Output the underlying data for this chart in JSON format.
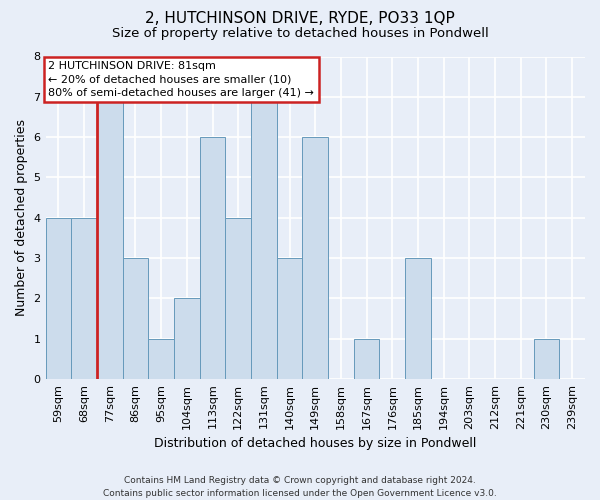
{
  "title": "2, HUTCHINSON DRIVE, RYDE, PO33 1QP",
  "subtitle": "Size of property relative to detached houses in Pondwell",
  "xlabel": "Distribution of detached houses by size in Pondwell",
  "ylabel": "Number of detached properties",
  "categories": [
    "59sqm",
    "68sqm",
    "77sqm",
    "86sqm",
    "95sqm",
    "104sqm",
    "113sqm",
    "122sqm",
    "131sqm",
    "140sqm",
    "149sqm",
    "158sqm",
    "167sqm",
    "176sqm",
    "185sqm",
    "194sqm",
    "203sqm",
    "212sqm",
    "221sqm",
    "230sqm",
    "239sqm"
  ],
  "values": [
    4,
    4,
    7,
    3,
    1,
    2,
    6,
    4,
    7,
    3,
    6,
    0,
    1,
    0,
    3,
    0,
    0,
    0,
    0,
    1,
    0
  ],
  "bar_color": "#ccdcec",
  "bar_edge_color": "#6699bb",
  "red_line_x": 1.5,
  "red_line_color": "#cc2222",
  "annotation_text": "2 HUTCHINSON DRIVE: 81sqm\n← 20% of detached houses are smaller (10)\n80% of semi-detached houses are larger (41) →",
  "annotation_edge_color": "#cc2222",
  "ylim": [
    0,
    8
  ],
  "yticks": [
    0,
    1,
    2,
    3,
    4,
    5,
    6,
    7,
    8
  ],
  "bg_color": "#e8eef8",
  "grid_color": "#ffffff",
  "footer_line1": "Contains HM Land Registry data © Crown copyright and database right 2024.",
  "footer_line2": "Contains public sector information licensed under the Open Government Licence v3.0.",
  "title_fontsize": 11,
  "subtitle_fontsize": 9.5,
  "xlabel_fontsize": 9,
  "ylabel_fontsize": 9,
  "tick_fontsize": 8,
  "annot_fontsize": 8,
  "footer_fontsize": 6.5,
  "bar_width": 1.0
}
